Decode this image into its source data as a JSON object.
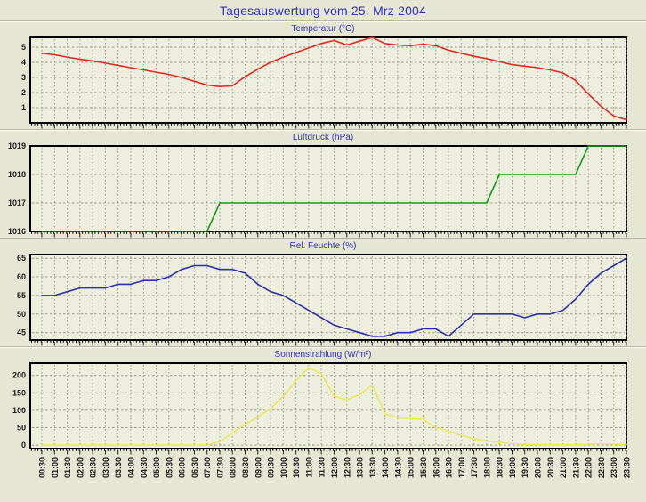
{
  "page": {
    "title": "Tagesauswertung vom 25. Mrz 2004"
  },
  "colors": {
    "page_bg": "#e6e6d5",
    "plot_bg": "#eeeede",
    "grid": "#9a9a8c",
    "title_blue": "#3232bd",
    "axis_text": "#1a1a1a",
    "plot_border": "#000000",
    "temperature_line": "#e02d24",
    "pressure_line": "#189a18",
    "humidity_line": "#2f2fae",
    "radiation_line": "#e9e95e"
  },
  "chart_data": [
    {
      "name": "temperature",
      "type": "line",
      "title": "Temperatur (°C)",
      "color": "#e02d24",
      "ylabel": "",
      "xlabel": "",
      "grid": true,
      "yticks": [
        1,
        2,
        3,
        4,
        5
      ],
      "ylim": [
        0,
        5.65
      ],
      "categories": [
        "00:30",
        "01:00",
        "01:30",
        "02:00",
        "02:30",
        "03:00",
        "03:30",
        "04:00",
        "04:30",
        "05:00",
        "05:30",
        "06:00",
        "06:30",
        "07:00",
        "07:30",
        "08:00",
        "08:30",
        "09:00",
        "09:30",
        "10:00",
        "10:30",
        "11:00",
        "11:30",
        "12:00",
        "12:30",
        "13:00",
        "13:30",
        "14:00",
        "14:30",
        "15:00",
        "15:30",
        "16:00",
        "16:30",
        "17:00",
        "17:30",
        "18:00",
        "18:30",
        "19:00",
        "19:30",
        "20:00",
        "20:30",
        "21:00",
        "21:30",
        "22:00",
        "22:30",
        "23:00",
        "23:30"
      ],
      "values": [
        4.6,
        4.5,
        4.35,
        4.2,
        4.1,
        3.95,
        3.8,
        3.65,
        3.5,
        3.35,
        3.2,
        3.0,
        2.75,
        2.5,
        2.4,
        2.45,
        3.05,
        3.55,
        4.0,
        4.35,
        4.65,
        4.95,
        5.25,
        5.45,
        5.15,
        5.4,
        5.7,
        5.25,
        5.15,
        5.1,
        5.2,
        5.1,
        4.8,
        4.6,
        4.4,
        4.25,
        4.05,
        3.85,
        3.75,
        3.65,
        3.5,
        3.3,
        2.8,
        1.9,
        1.1,
        0.45,
        0.2
      ]
    },
    {
      "name": "pressure",
      "type": "line",
      "title": "Luftdruck (hPa)",
      "color": "#189a18",
      "ylabel": "",
      "xlabel": "",
      "grid": true,
      "yticks": [
        1016,
        1017,
        1018,
        1019
      ],
      "ylim": [
        1016,
        1019
      ],
      "categories": [
        "00:30",
        "01:00",
        "01:30",
        "02:00",
        "02:30",
        "03:00",
        "03:30",
        "04:00",
        "04:30",
        "05:00",
        "05:30",
        "06:00",
        "06:30",
        "07:00",
        "07:30",
        "08:00",
        "08:30",
        "09:00",
        "09:30",
        "10:00",
        "10:30",
        "11:00",
        "11:30",
        "12:00",
        "12:30",
        "13:00",
        "13:30",
        "14:00",
        "14:30",
        "15:00",
        "15:30",
        "16:00",
        "16:30",
        "17:00",
        "17:30",
        "18:00",
        "18:30",
        "19:00",
        "19:30",
        "20:00",
        "20:30",
        "21:00",
        "21:30",
        "22:00",
        "22:30",
        "23:00",
        "23:30"
      ],
      "values": [
        1016,
        1016,
        1016,
        1016,
        1016,
        1016,
        1016,
        1016,
        1016,
        1016,
        1016,
        1016,
        1016,
        1016,
        1017,
        1017,
        1017,
        1017,
        1017,
        1017,
        1017,
        1017,
        1017,
        1017,
        1017,
        1017,
        1017,
        1017,
        1017,
        1017,
        1017,
        1017,
        1017,
        1017,
        1017,
        1017,
        1018,
        1018,
        1018,
        1018,
        1018,
        1018,
        1018,
        1019,
        1019,
        1019,
        1019
      ]
    },
    {
      "name": "humidity",
      "type": "line",
      "title": "Rel. Feuchte (%)",
      "color": "#2f2fae",
      "ylabel": "",
      "xlabel": "",
      "grid": true,
      "yticks": [
        45,
        50,
        55,
        60,
        65
      ],
      "ylim": [
        43,
        66
      ],
      "categories": [
        "00:30",
        "01:00",
        "01:30",
        "02:00",
        "02:30",
        "03:00",
        "03:30",
        "04:00",
        "04:30",
        "05:00",
        "05:30",
        "06:00",
        "06:30",
        "07:00",
        "07:30",
        "08:00",
        "08:30",
        "09:00",
        "09:30",
        "10:00",
        "10:30",
        "11:00",
        "11:30",
        "12:00",
        "12:30",
        "13:00",
        "13:30",
        "14:00",
        "14:30",
        "15:00",
        "15:30",
        "16:00",
        "16:30",
        "17:00",
        "17:30",
        "18:00",
        "18:30",
        "19:00",
        "19:30",
        "20:00",
        "20:30",
        "21:00",
        "21:30",
        "22:00",
        "22:30",
        "23:00",
        "23:30"
      ],
      "values": [
        55,
        55,
        56,
        57,
        57,
        57,
        58,
        58,
        59,
        59,
        60,
        62,
        63,
        63,
        62,
        62,
        61,
        58,
        56,
        55,
        53,
        51,
        49,
        47,
        46,
        45,
        44,
        44,
        45,
        45,
        46,
        46,
        44,
        47,
        50,
        50,
        50,
        50,
        49,
        50,
        50,
        51,
        54,
        58,
        61,
        63,
        65
      ]
    },
    {
      "name": "radiation",
      "type": "line",
      "title": "Sonnenstrahlung (W/m²)",
      "color": "#e9e95e",
      "ylabel": "",
      "xlabel": "",
      "grid": true,
      "yticks": [
        0,
        50,
        100,
        150,
        200
      ],
      "ylim": [
        -10,
        235
      ],
      "categories": [
        "00:30",
        "01:00",
        "01:30",
        "02:00",
        "02:30",
        "03:00",
        "03:30",
        "04:00",
        "04:30",
        "05:00",
        "05:30",
        "06:00",
        "06:30",
        "07:00",
        "07:30",
        "08:00",
        "08:30",
        "09:00",
        "09:30",
        "10:00",
        "10:30",
        "11:00",
        "11:30",
        "12:00",
        "12:30",
        "13:00",
        "13:30",
        "14:00",
        "14:30",
        "15:00",
        "15:30",
        "16:00",
        "16:30",
        "17:00",
        "17:30",
        "18:00",
        "18:30",
        "19:00",
        "19:30",
        "20:00",
        "20:30",
        "21:00",
        "21:30",
        "22:00",
        "22:30",
        "23:00",
        "23:30"
      ],
      "values": [
        0,
        0,
        0,
        0,
        0,
        0,
        0,
        0,
        0,
        0,
        0,
        0,
        0,
        0,
        10,
        35,
        60,
        80,
        105,
        140,
        185,
        222,
        205,
        140,
        130,
        145,
        172,
        90,
        78,
        76,
        74,
        50,
        40,
        28,
        18,
        12,
        8,
        4,
        2,
        2,
        1,
        1,
        1,
        2,
        4,
        3,
        1
      ]
    }
  ]
}
